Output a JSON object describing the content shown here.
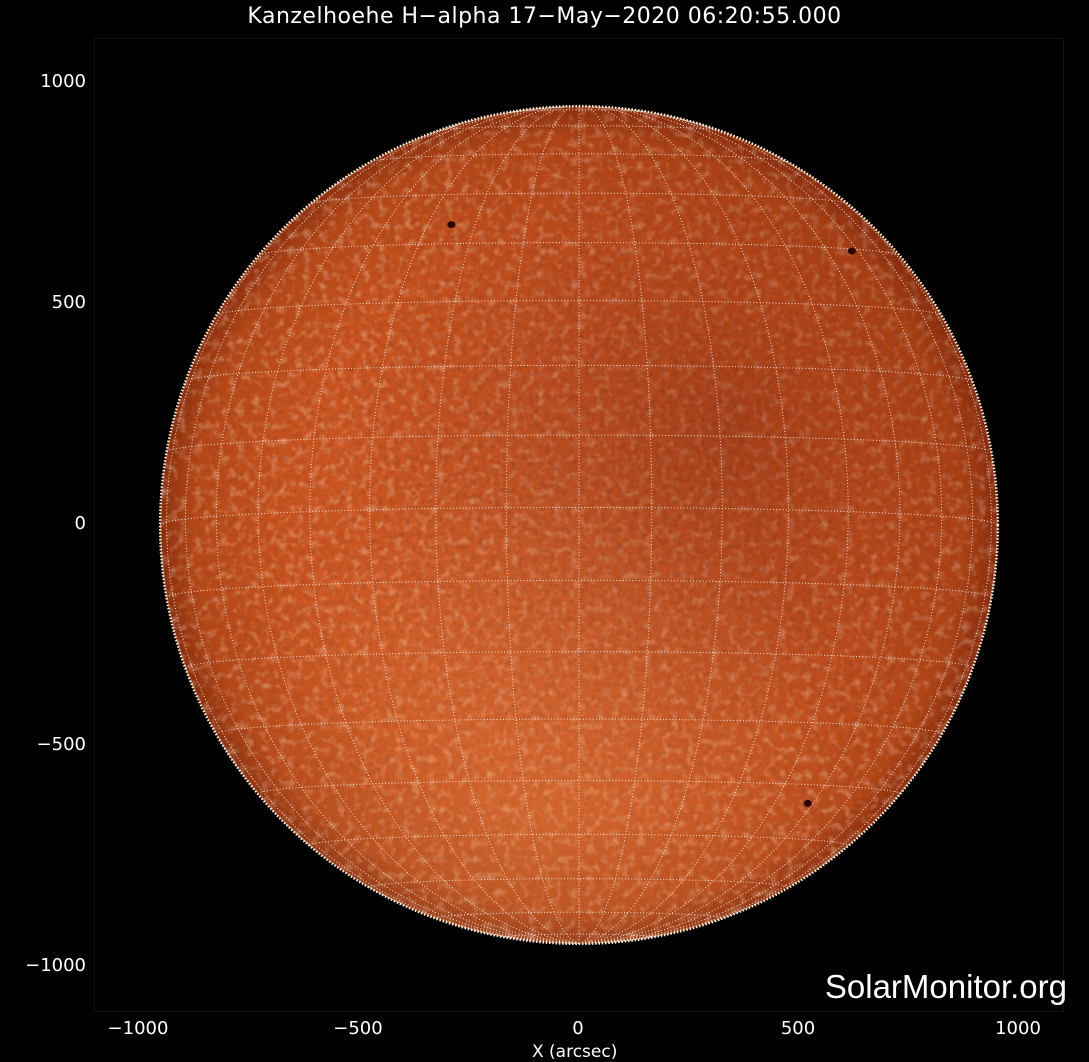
{
  "figure": {
    "title": "Kanzelhoehe H−alpha 17−May−2020 06:20:55.000",
    "xlabel": "X (arcsec)",
    "ylabel": "",
    "watermark": "SolarMonitor.org"
  },
  "axes": {
    "x_ticks": [
      "−1000",
      "−500",
      "0",
      "500",
      "1000"
    ],
    "y_ticks": [
      "1000",
      "500",
      "0",
      "−500",
      "−1000"
    ],
    "x_tick_values": [
      -1000,
      -500,
      0,
      500,
      1000
    ],
    "y_tick_values": [
      1000,
      500,
      0,
      -500,
      -1000
    ],
    "xlim": [
      -1100,
      1100
    ],
    "ylim": [
      -1100,
      1100
    ]
  },
  "sun": {
    "center_x_arcsec": 0,
    "center_y_arcsec": 0,
    "radius_arcsec": 950,
    "grid_latitude_step_deg": 10,
    "grid_longitude_step_deg": 10,
    "b0_deg": -2.4,
    "colors": {
      "disk_base": "#c4501a",
      "disk_bright": "#f08a3c",
      "disk_dark": "#6a1a08",
      "limb": "#fff1d9",
      "grid": "#ffffff",
      "background": "#000000"
    },
    "sunspots": [
      {
        "x": -290,
        "y": 680
      },
      {
        "x": 520,
        "y": -630
      },
      {
        "x": 620,
        "y": 620
      }
    ]
  }
}
